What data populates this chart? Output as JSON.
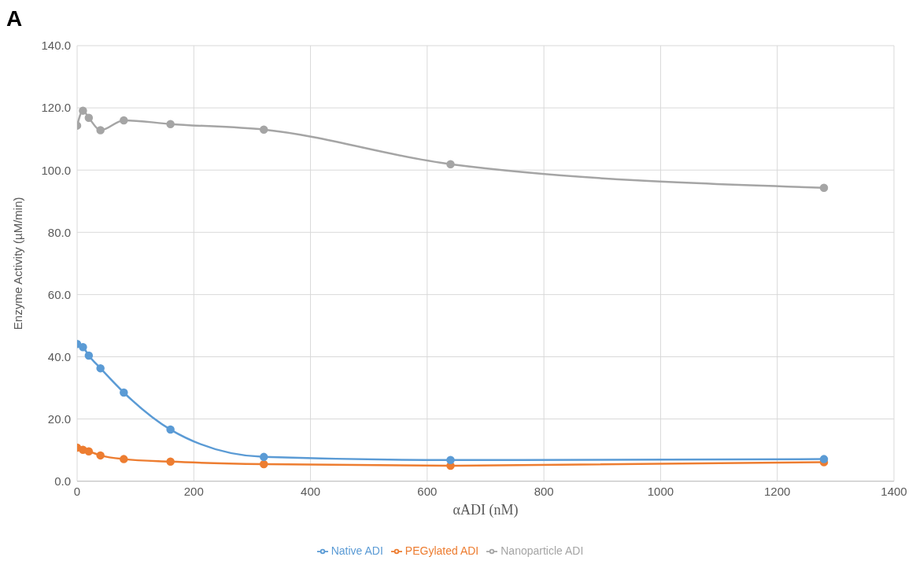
{
  "chart_data": {
    "type": "line",
    "annotations": [
      "A"
    ],
    "xlabel": "αADI (nM)",
    "ylabel": "Enzyme Activity (µM/min)",
    "x": [
      0,
      10,
      20,
      40,
      80,
      160,
      320,
      640,
      1280
    ],
    "series": [
      {
        "name": "Native ADI",
        "color": "#5b9bd5",
        "values": [
          44.1,
          43.1,
          40.4,
          36.3,
          28.5,
          16.6,
          7.8,
          6.8,
          7.1
        ]
      },
      {
        "name": "PEGylated ADI",
        "color": "#ed7d31",
        "values": [
          10.8,
          10.1,
          9.6,
          8.3,
          7.1,
          6.3,
          5.5,
          5.0,
          6.1
        ]
      },
      {
        "name": "Nanoparticle ADI",
        "color": "#a5a5a5",
        "values": [
          114.3,
          119.1,
          116.8,
          112.8,
          116.0,
          114.8,
          113.0,
          101.9,
          94.3
        ]
      }
    ],
    "xlim": [
      0,
      1400
    ],
    "xticks": [
      0,
      200,
      400,
      600,
      800,
      1000,
      1200,
      1400
    ],
    "ylim": [
      0,
      140
    ],
    "yticks": [
      {
        "value": 0,
        "label": "0.0"
      },
      {
        "value": 20,
        "label": "20.0"
      },
      {
        "value": 40,
        "label": "40.0"
      },
      {
        "value": 60,
        "label": "60.0"
      },
      {
        "value": 80,
        "label": "80.0"
      },
      {
        "value": 100,
        "label": "100.0"
      },
      {
        "value": 120,
        "label": "120.0"
      },
      {
        "value": 140,
        "label": "140.0"
      }
    ],
    "grid": true,
    "legend": "bottom",
    "marker": "circle",
    "line_style": "solid"
  }
}
